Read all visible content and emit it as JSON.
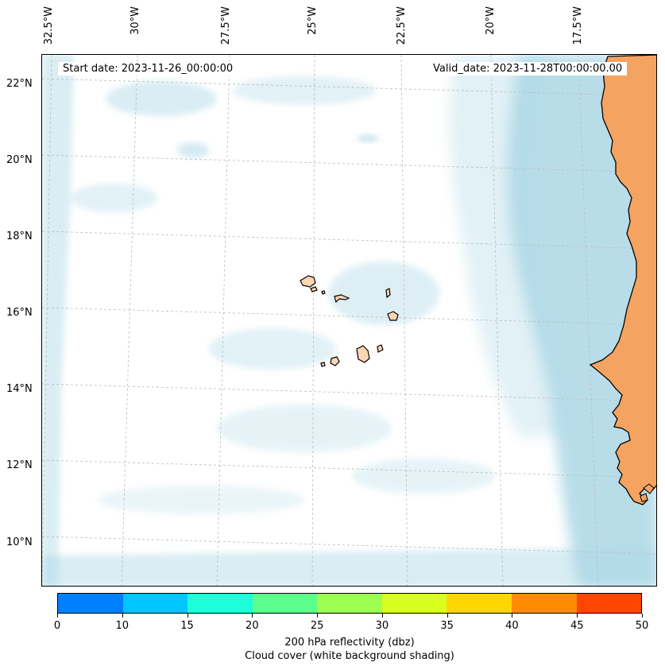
{
  "map": {
    "start_date": "Start date: 2023-11-26_00:00:00",
    "valid_date": "Valid_date: 2023-11-28T00:00:00.00",
    "longitude_labels": [
      "32.5°W",
      "30°W",
      "27.5°W",
      "25°W",
      "22.5°W",
      "20°W",
      "17.5°W"
    ],
    "latitude_labels": [
      "22°N",
      "20°N",
      "18°N",
      "16°N",
      "14°N",
      "12°N",
      "10°N"
    ],
    "colors": {
      "cloud_cover": "#acd8e6",
      "land": "#f4a460",
      "islands": "#fcd5b3",
      "coastline": "#000000",
      "gridline": "#bbbbbb"
    }
  },
  "colorbar": {
    "colors": [
      "#0080ff",
      "#00c6ff",
      "#1dffd8",
      "#5dff8c",
      "#9cff52",
      "#d8ff1e",
      "#ffd700",
      "#ff8c00",
      "#ff4500"
    ],
    "ticks": [
      "0",
      "10",
      "15",
      "20",
      "25",
      "30",
      "35",
      "40",
      "45",
      "50"
    ],
    "label_line1": "200 hPa reflectivity (dbz)",
    "label_line2": "Cloud cover (white background shading)"
  }
}
